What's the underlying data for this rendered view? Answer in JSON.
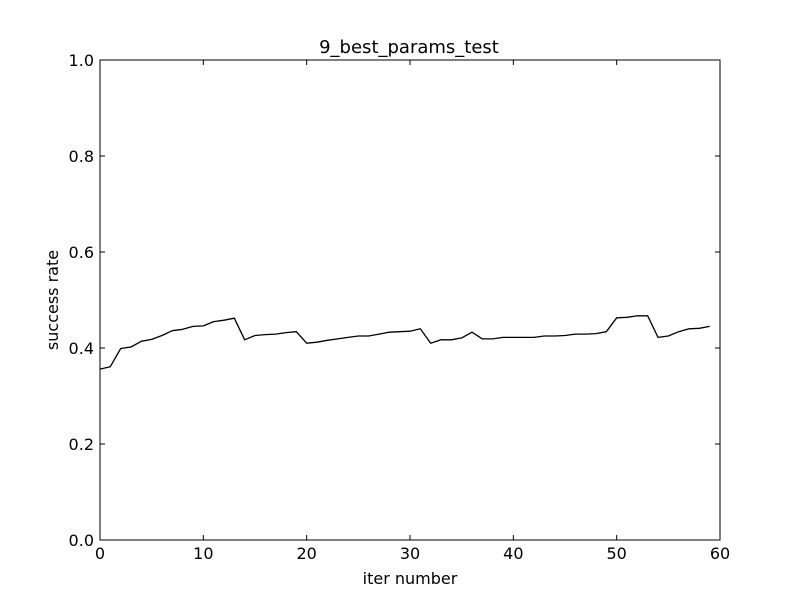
{
  "chart_data": {
    "type": "line",
    "title": "9_best_params_test",
    "xlabel": "iter number",
    "ylabel": "success rate",
    "xlim": [
      0,
      60
    ],
    "ylim": [
      0.0,
      1.0
    ],
    "xticks": [
      "0",
      "10",
      "20",
      "30",
      "40",
      "50",
      "60"
    ],
    "yticks": [
      "0.0",
      "0.2",
      "0.4",
      "0.6",
      "0.8",
      "1.0"
    ],
    "grid": false,
    "line_color": "#000000",
    "series": [
      {
        "x": [
          0,
          1,
          2,
          3,
          4,
          5,
          6,
          7,
          8,
          9,
          10,
          11,
          12,
          13,
          14,
          15,
          16,
          17,
          18,
          19,
          20,
          21,
          22,
          23,
          24,
          25,
          26,
          27,
          28,
          29,
          30,
          31,
          32,
          33,
          34,
          35,
          36,
          37,
          38,
          39,
          40,
          41,
          42,
          43,
          44,
          45,
          46,
          47,
          48,
          49,
          50,
          51,
          52,
          53,
          54,
          55,
          56,
          57,
          58,
          59
        ],
        "values": [
          0.356,
          0.361,
          0.399,
          0.402,
          0.414,
          0.418,
          0.426,
          0.436,
          0.439,
          0.445,
          0.446,
          0.455,
          0.458,
          0.462,
          0.417,
          0.426,
          0.428,
          0.429,
          0.432,
          0.434,
          0.41,
          0.412,
          0.416,
          0.419,
          0.422,
          0.425,
          0.425,
          0.429,
          0.433,
          0.434,
          0.435,
          0.44,
          0.41,
          0.417,
          0.417,
          0.421,
          0.433,
          0.419,
          0.419,
          0.422,
          0.422,
          0.422,
          0.422,
          0.425,
          0.425,
          0.426,
          0.429,
          0.429,
          0.43,
          0.434,
          0.463,
          0.464,
          0.467,
          0.467,
          0.422,
          0.425,
          0.434,
          0.44,
          0.441,
          0.445
        ]
      }
    ]
  }
}
